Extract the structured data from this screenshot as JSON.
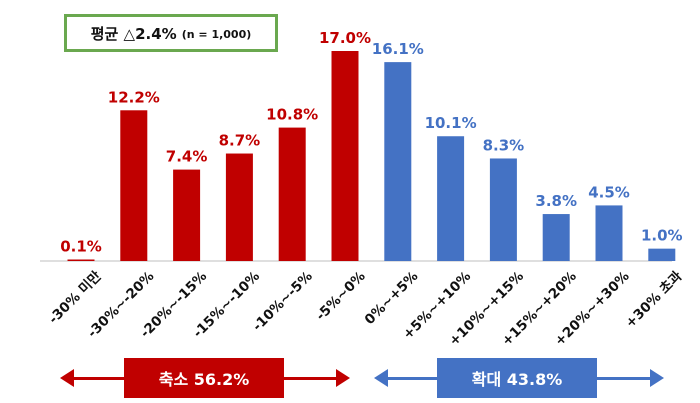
{
  "colors": {
    "shrink": "#c00000",
    "expand": "#4472c4",
    "avg_border": "#6aa84f"
  },
  "average": {
    "text": "평균 △2.4%",
    "n_text": "(n = 1,000)"
  },
  "groups": {
    "shrink": {
      "label": "축소 56.2%"
    },
    "expand": {
      "label": "확대 43.8%"
    }
  },
  "chart_data": {
    "type": "bar",
    "categories": [
      "-30% 미만",
      "-30%~-20%",
      "-20%~-15%",
      "-15%~-10%",
      "-10%~-5%",
      "-5%~0%",
      "0%~+5%",
      "+5%~+10%",
      "+10%~+15%",
      "+15%~+20%",
      "+20%~+30%",
      "+30% 초과"
    ],
    "values": [
      0.1,
      12.2,
      7.4,
      8.7,
      10.8,
      17.0,
      16.1,
      10.1,
      8.3,
      3.8,
      4.5,
      1.0
    ],
    "value_labels": [
      "0.1%",
      "12.2%",
      "7.4%",
      "8.7%",
      "10.8%",
      "17.0%",
      "16.1%",
      "10.1%",
      "8.3%",
      "3.8%",
      "4.5%",
      "1.0%"
    ],
    "bar_colors": [
      "#c00000",
      "#c00000",
      "#c00000",
      "#c00000",
      "#c00000",
      "#c00000",
      "#4472c4",
      "#4472c4",
      "#4472c4",
      "#4472c4",
      "#4472c4",
      "#4472c4"
    ],
    "ylim": [
      0,
      17.0
    ],
    "grid": false,
    "title": "",
    "xlabel": "",
    "ylabel": ""
  }
}
